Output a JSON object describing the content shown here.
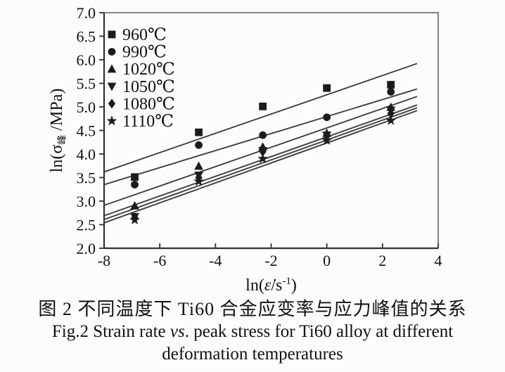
{
  "figure": {
    "caption_cn": "图 2  不同温度下 Ti60 合金应变率与应力峰值的关系",
    "caption_en_pre": "Fig.2  Strain rate ",
    "caption_en_italic": "vs",
    "caption_en_post": ". peak stress for Ti60 alloy at different",
    "caption_en_line2": "deformation temperatures"
  },
  "chart_data": {
    "type": "scatter",
    "title": "",
    "xlabel_parts": {
      "pre": "ln(",
      "sym": "ε̇",
      "mid": "/s",
      "sup": "-1",
      "post": ")"
    },
    "ylabel_parts": {
      "pre": "ln(σ",
      "sub": "峰",
      "post": " /MPa)"
    },
    "xlim": [
      -8,
      4
    ],
    "ylim": [
      2.0,
      7.0
    ],
    "xtick_values": [
      -8,
      -6,
      -4,
      -2,
      0,
      2,
      4
    ],
    "xtick_labels": [
      "-8",
      "-6",
      "-4",
      "-2",
      "0",
      "2",
      "4"
    ],
    "ytick_values": [
      2.0,
      2.5,
      3.0,
      3.5,
      4.0,
      4.5,
      5.0,
      5.5,
      6.0,
      6.5,
      7.0
    ],
    "ytick_labels": [
      "2.0",
      "2.5",
      "3.0",
      "3.5",
      "4.0",
      "4.5",
      "5.0",
      "5.5",
      "6.0",
      "6.5",
      "7.0"
    ],
    "grid": false,
    "legend_position": "upper-left-inside",
    "x": [
      -6.9,
      -4.6,
      -2.3,
      0,
      2.3
    ],
    "fit_x_range": [
      -8,
      3.24
    ],
    "series": [
      {
        "name": "960℃",
        "marker": "square",
        "values": [
          3.51,
          4.46,
          5.01,
          5.4,
          5.47
        ],
        "fit": [
          3.62,
          5.92
        ]
      },
      {
        "name": "990℃",
        "marker": "circle",
        "values": [
          3.35,
          4.19,
          4.4,
          4.78,
          5.32
        ],
        "fit": [
          3.35,
          5.38
        ]
      },
      {
        "name": "1020℃",
        "marker": "triangle-up",
        "values": [
          2.9,
          3.74,
          4.15,
          4.44,
          4.99
        ],
        "fit": [
          2.91,
          5.22
        ]
      },
      {
        "name": "1050℃",
        "marker": "triangle-down",
        "values": [
          2.67,
          3.55,
          4.07,
          4.4,
          4.93
        ],
        "fit": [
          2.69,
          5.04
        ]
      },
      {
        "name": "1080℃",
        "marker": "diamond",
        "values": [
          2.65,
          3.5,
          4.05,
          4.38,
          4.86
        ],
        "fit": [
          2.61,
          4.98
        ]
      },
      {
        "name": "1110℃",
        "marker": "star",
        "values": [
          2.6,
          3.42,
          3.9,
          4.29,
          4.71
        ],
        "fit": [
          2.54,
          4.92
        ]
      }
    ],
    "colors": {
      "marker": "#1c1c1c",
      "fit_line": "#3f3f3f",
      "axis": "#333333",
      "box": "#666666",
      "text": "#111111"
    }
  }
}
